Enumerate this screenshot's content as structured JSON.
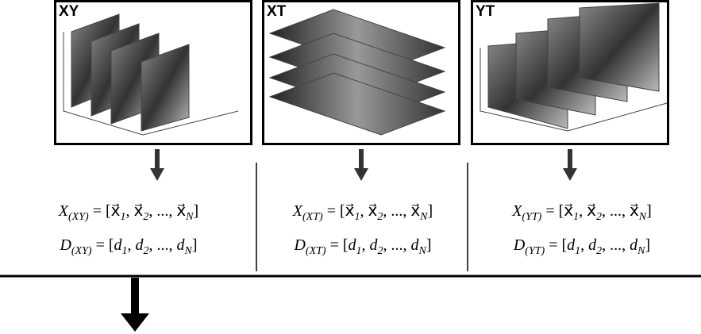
{
  "panels": [
    {
      "label": "XY",
      "formula_x": [
        {
          "text": "X"
        },
        {
          "text": "(XY)",
          "sub": true
        },
        {
          "text": " = ["
        },
        {
          "text": "x⃗"
        },
        {
          "text": "1",
          "sub": true
        },
        {
          "text": ", "
        },
        {
          "text": "x⃗"
        },
        {
          "text": "2",
          "sub": true
        },
        {
          "text": ", ..., "
        },
        {
          "text": "x⃗"
        },
        {
          "text": "N",
          "sub": true
        },
        {
          "text": "]"
        }
      ],
      "formula_d": [
        {
          "text": "D"
        },
        {
          "text": "(XY)",
          "sub": true
        },
        {
          "text": " = ["
        },
        {
          "text": "d"
        },
        {
          "text": "1",
          "sub": true
        },
        {
          "text": ", "
        },
        {
          "text": "d"
        },
        {
          "text": "2",
          "sub": true
        },
        {
          "text": ", ..., "
        },
        {
          "text": "d"
        },
        {
          "text": "N",
          "sub": true
        },
        {
          "text": "]"
        }
      ]
    },
    {
      "label": "XT",
      "formula_x": [
        {
          "text": "X"
        },
        {
          "text": "(XT)",
          "sub": true
        },
        {
          "text": " = ["
        },
        {
          "text": "x⃗"
        },
        {
          "text": "1",
          "sub": true
        },
        {
          "text": ", "
        },
        {
          "text": "x⃗"
        },
        {
          "text": "2",
          "sub": true
        },
        {
          "text": ", ..., "
        },
        {
          "text": "x⃗"
        },
        {
          "text": "N",
          "sub": true
        },
        {
          "text": "]"
        }
      ],
      "formula_d": [
        {
          "text": "D"
        },
        {
          "text": "(XT)",
          "sub": true
        },
        {
          "text": " = ["
        },
        {
          "text": "d"
        },
        {
          "text": "1",
          "sub": true
        },
        {
          "text": ", "
        },
        {
          "text": "d"
        },
        {
          "text": "2",
          "sub": true
        },
        {
          "text": ", ..., "
        },
        {
          "text": "d"
        },
        {
          "text": "N",
          "sub": true
        },
        {
          "text": "]"
        }
      ]
    },
    {
      "label": "YT",
      "formula_x": [
        {
          "text": "X"
        },
        {
          "text": "(YT)",
          "sub": true
        },
        {
          "text": " = ["
        },
        {
          "text": "x⃗"
        },
        {
          "text": "1",
          "sub": true
        },
        {
          "text": ", "
        },
        {
          "text": "x⃗"
        },
        {
          "text": "2",
          "sub": true
        },
        {
          "text": ", ..., "
        },
        {
          "text": "x⃗"
        },
        {
          "text": "N",
          "sub": true
        },
        {
          "text": "]"
        }
      ],
      "formula_d": [
        {
          "text": "D"
        },
        {
          "text": "(YT)",
          "sub": true
        },
        {
          "text": " = ["
        },
        {
          "text": "d"
        },
        {
          "text": "1",
          "sub": true
        },
        {
          "text": ", "
        },
        {
          "text": "d"
        },
        {
          "text": "2",
          "sub": true
        },
        {
          "text": ", ..., "
        },
        {
          "text": "d"
        },
        {
          "text": "N",
          "sub": true
        },
        {
          "text": "]"
        }
      ]
    }
  ]
}
